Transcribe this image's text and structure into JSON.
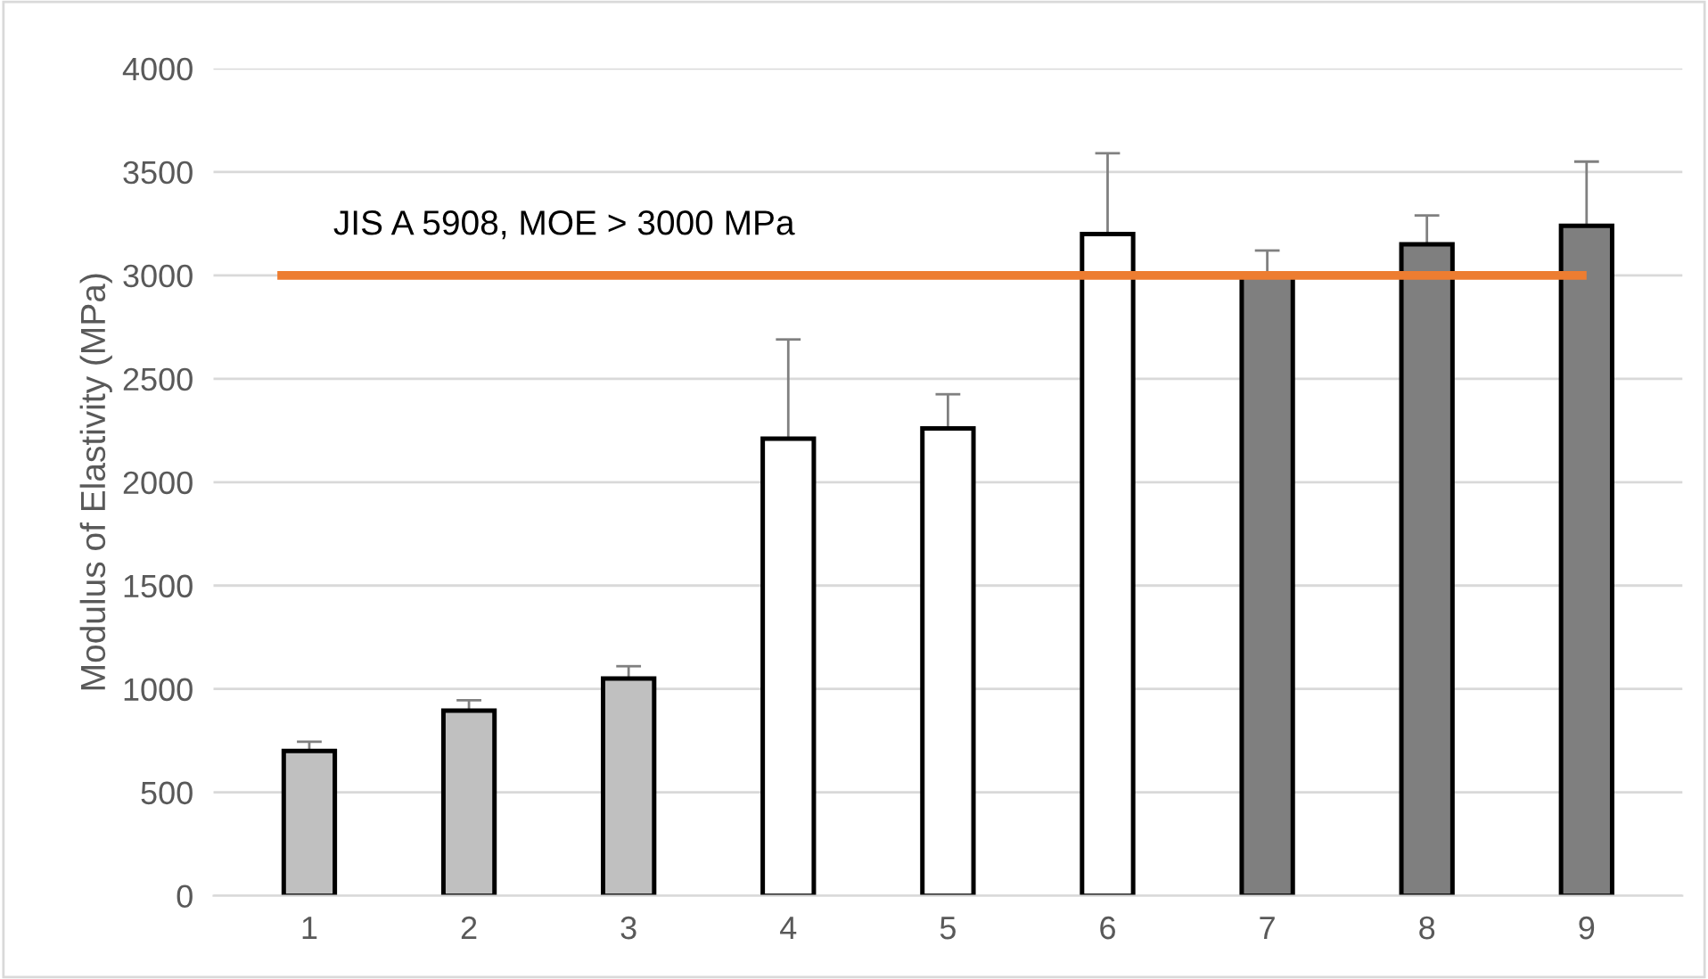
{
  "chart_data": {
    "type": "bar",
    "ylabel": "Modulus of Elastivity (MPa)",
    "categories": [
      "1",
      "2",
      "3",
      "4",
      "5",
      "6",
      "7",
      "8",
      "9"
    ],
    "values": [
      700,
      895,
      1050,
      2210,
      2260,
      3200,
      3000,
      3150,
      3240
    ],
    "errors": [
      45,
      50,
      60,
      480,
      165,
      390,
      120,
      140,
      310
    ],
    "colors": [
      "#c0c0c0",
      "#c0c0c0",
      "#c0c0c0",
      "#ffffff",
      "#ffffff",
      "#ffffff",
      "#7f7f7f",
      "#7f7f7f",
      "#7f7f7f"
    ],
    "ylim": [
      0,
      4000
    ],
    "yticks": [
      0,
      500,
      1000,
      1500,
      2000,
      2500,
      3000,
      3500,
      4000
    ],
    "grid": "y",
    "ref_lines": [
      {
        "axis": "y",
        "value": 3000,
        "label": "JIS A 5908, MOE > 3000 MPa",
        "color": "#ed7d31",
        "line_style": "solid"
      }
    ]
  }
}
